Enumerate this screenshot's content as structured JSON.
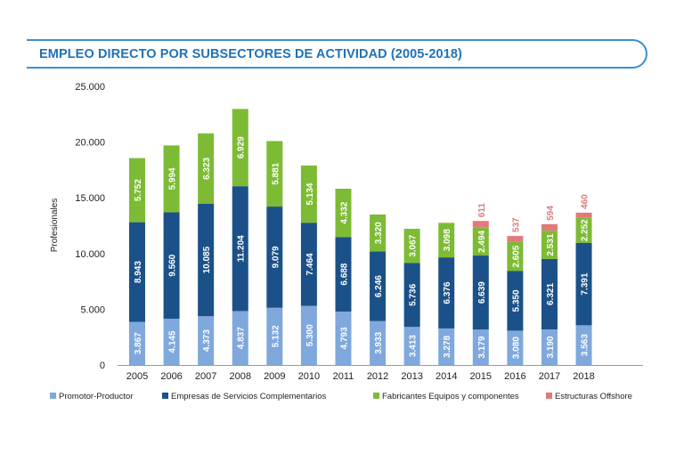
{
  "title": "EMPLEO DIRECTO POR SUBSECTORES DE ACTIVIDAD (2005-2018)",
  "chart_data": {
    "type": "bar",
    "stacked": true,
    "title": "EMPLEO DIRECTO POR SUBSECTORES DE ACTIVIDAD (2005-2018)",
    "xlabel": "",
    "ylabel": "Profesionales",
    "ylim": [
      0,
      25000
    ],
    "yticks": [
      0,
      5000,
      10000,
      15000,
      20000,
      25000
    ],
    "ytick_labels": [
      "0",
      "5.000",
      "10.000",
      "15.000",
      "20.000",
      "25.000"
    ],
    "grid": false,
    "legend_position": "bottom",
    "categories": [
      "2005",
      "2006",
      "2007",
      "2008",
      "2009",
      "2010",
      "2011",
      "2012",
      "2013",
      "2014",
      "2015",
      "2016",
      "2017",
      "2018"
    ],
    "series": [
      {
        "name": "Promotor-Productor",
        "color": "#7fa8dc",
        "values": [
          3867,
          4145,
          4373,
          4837,
          5132,
          5300,
          4793,
          3933,
          3413,
          3278,
          3179,
          3080,
          3190,
          3563
        ],
        "labels": [
          "3.867",
          "4.145",
          "4.373",
          "4.837",
          "5.132",
          "5.300",
          "4.793",
          "3.933",
          "3.413",
          "3.278",
          "3.179",
          "3.080",
          "3.190",
          "3.563"
        ]
      },
      {
        "name": "Empresas de Servicios Complementarios",
        "color": "#1b5188",
        "values": [
          8943,
          9560,
          10085,
          11204,
          9079,
          7464,
          6688,
          6246,
          5736,
          6376,
          6639,
          5350,
          6321,
          7391
        ],
        "labels": [
          "8.943",
          "9.560",
          "10.085",
          "11.204",
          "9.079",
          "7.464",
          "6.688",
          "6.246",
          "5.736",
          "6.376",
          "6.639",
          "5.350",
          "6.321",
          "7.391"
        ]
      },
      {
        "name": "Fabricantes Equipos y componentes",
        "color": "#7dbb35",
        "values": [
          5752,
          5994,
          6323,
          6929,
          5881,
          5134,
          4332,
          3320,
          3067,
          3098,
          2494,
          2605,
          2531,
          2252
        ],
        "labels": [
          "5.752",
          "5.994",
          "6.323",
          "6.929",
          "5.881",
          "5.134",
          "4.332",
          "3.320",
          "3.067",
          "3.098",
          "2.494",
          "2.605",
          "2.531",
          "2.252"
        ]
      },
      {
        "name": "Estructuras Offshore",
        "color": "#e07b7b",
        "values": [
          0,
          0,
          0,
          0,
          0,
          0,
          0,
          0,
          0,
          0,
          611,
          537,
          594,
          460
        ],
        "labels": [
          "",
          "",
          "",
          "",
          "",
          "",
          "",
          "",
          "",
          "",
          "611",
          "537",
          "594",
          "460"
        ]
      }
    ]
  }
}
